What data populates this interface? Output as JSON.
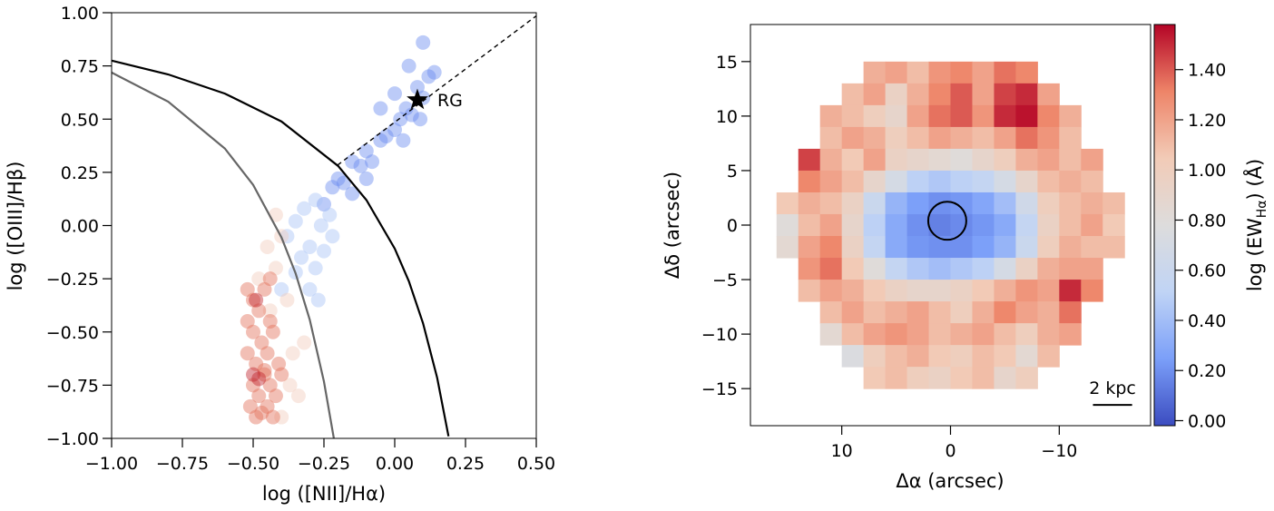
{
  "chart_data": [
    {
      "type": "scatter",
      "xlabel": "log ([NII]/Hα)",
      "ylabel": "log ([OIII]/Hβ)",
      "xlim": [
        -1,
        0.5
      ],
      "ylim": [
        -1,
        1
      ],
      "xticks": [
        {
          "value": -1,
          "label": "−1.00"
        },
        {
          "value": -0.75,
          "label": "−0.75"
        },
        {
          "value": -0.5,
          "label": "−0.50"
        },
        {
          "value": -0.25,
          "label": "−0.25"
        },
        {
          "value": 0,
          "label": "0.00"
        },
        {
          "value": 0.25,
          "label": "0.25"
        },
        {
          "value": 0.5,
          "label": "0.50"
        }
      ],
      "yticks": [
        {
          "value": -1,
          "label": "−1.00"
        },
        {
          "value": -0.75,
          "label": "−0.75"
        },
        {
          "value": -0.5,
          "label": "−0.50"
        },
        {
          "value": -0.25,
          "label": "−0.25"
        },
        {
          "value": 0,
          "label": "0.00"
        },
        {
          "value": 0.25,
          "label": "0.25"
        },
        {
          "value": 0.5,
          "label": "0.50"
        },
        {
          "value": 0.75,
          "label": "0.75"
        },
        {
          "value": 1,
          "label": "1.00"
        }
      ],
      "series": [
        {
          "color": "#6a8cef",
          "x": [
            -0.25,
            -0.22,
            -0.2,
            -0.18,
            -0.15,
            -0.12,
            -0.1,
            -0.08,
            -0.05,
            -0.03,
            0,
            0.02,
            0.04,
            0.06,
            0.08,
            0.1,
            0.12,
            0.14,
            -0.05,
            0,
            0.05,
            0.1,
            -0.15,
            -0.1,
            0.03,
            0.09
          ],
          "values": [
            0.1,
            0.18,
            0.22,
            0.2,
            0.3,
            0.28,
            0.35,
            0.3,
            0.4,
            0.42,
            0.45,
            0.5,
            0.55,
            0.52,
            0.65,
            0.6,
            0.7,
            0.72,
            0.55,
            0.62,
            0.75,
            0.86,
            0.15,
            0.22,
            0.4,
            0.5
          ]
        },
        {
          "color": "#a9c4f6",
          "x": [
            -0.38,
            -0.35,
            -0.33,
            -0.3,
            -0.28,
            -0.26,
            -0.25,
            -0.23,
            -0.3,
            -0.35,
            -0.27,
            -0.32,
            -0.22,
            -0.4,
            -0.28
          ],
          "values": [
            -0.05,
            0.02,
            -0.15,
            -0.1,
            -0.2,
            0,
            -0.12,
            0.05,
            -0.3,
            -0.22,
            -0.35,
            0.08,
            -0.05,
            -0.3,
            0.12
          ]
        },
        {
          "color": "#f1cdbc",
          "x": [
            -0.45,
            -0.42,
            -0.4,
            -0.38,
            -0.44,
            -0.36,
            -0.48,
            -0.34,
            -0.4,
            -0.37,
            -0.32,
            -0.42
          ],
          "values": [
            -0.1,
            -0.2,
            -0.05,
            -0.35,
            -0.4,
            -0.6,
            -0.25,
            -0.8,
            -0.9,
            -0.75,
            -0.55,
            0.05
          ]
        },
        {
          "color": "#e3725a",
          "x": [
            -0.52,
            -0.5,
            -0.48,
            -0.46,
            -0.44,
            -0.5,
            -0.47,
            -0.45,
            -0.43,
            -0.41,
            -0.52,
            -0.49,
            -0.46,
            -0.44,
            -0.5,
            -0.48,
            -0.42,
            -0.4,
            -0.51,
            -0.47,
            -0.45,
            -0.43,
            -0.49,
            -0.46,
            -0.52,
            -0.44
          ],
          "values": [
            -0.3,
            -0.35,
            -0.4,
            -0.3,
            -0.45,
            -0.5,
            -0.55,
            -0.6,
            -0.5,
            -0.65,
            -0.6,
            -0.65,
            -0.7,
            -0.75,
            -0.75,
            -0.8,
            -0.8,
            -0.7,
            -0.85,
            -0.88,
            -0.85,
            -0.9,
            -0.9,
            -0.68,
            -0.45,
            -0.25
          ]
        },
        {
          "color": "#c0262f",
          "x": [
            -0.5,
            -0.48,
            -0.49
          ],
          "values": [
            -0.7,
            -0.72,
            -0.35
          ]
        }
      ],
      "lines": [
        {
          "color": "#666666",
          "style": "solid",
          "x": [
            -1,
            -0.8,
            -0.6,
            -0.5,
            -0.4,
            -0.35,
            -0.3,
            -0.25,
            -0.215
          ],
          "values": [
            0.719,
            0.582,
            0.362,
            0.191,
            -0.056,
            -0.225,
            -0.443,
            -0.733,
            -1
          ]
        },
        {
          "color": "#000000",
          "style": "solid",
          "x": [
            -1,
            -0.8,
            -0.6,
            -0.4,
            -0.2,
            -0.1,
            0,
            0.05,
            0.1,
            0.15,
            0.19
          ],
          "values": [
            0.775,
            0.71,
            0.62,
            0.489,
            0.28,
            0.12,
            -0.108,
            -0.262,
            -0.459,
            -0.716,
            -0.99
          ]
        },
        {
          "color": "#000000",
          "style": "dashed",
          "x": [
            -0.202,
            0.5
          ],
          "values": [
            0.284,
            0.985
          ]
        }
      ],
      "marker": {
        "x": 0.08,
        "y": 0.59,
        "label": "RG"
      }
    },
    {
      "type": "heatmap",
      "xlabel": "Δα (arcsec)",
      "ylabel": "Δδ (arcsec)",
      "xlim": [
        18.4,
        -18.4
      ],
      "ylim": [
        -18.4,
        18.4
      ],
      "xticks": [
        10,
        0,
        {
          "value": -10,
          "label": "−10"
        }
      ],
      "yticks": [
        15,
        10,
        5,
        0,
        {
          "value": -5,
          "label": "−5"
        },
        {
          "value": -10,
          "label": "−10"
        },
        {
          "value": -15,
          "label": "−15"
        }
      ],
      "x": [
        15,
        13,
        11,
        9,
        7,
        5,
        3,
        1,
        -1,
        -3,
        -5,
        -7,
        -9,
        -11,
        -13,
        -15
      ],
      "y": [
        14,
        12,
        10,
        8,
        6,
        4,
        2,
        0,
        -2,
        -4,
        -6,
        -8,
        -10,
        -12,
        -14
      ],
      "z": [
        [
          null,
          null,
          null,
          null,
          1.15,
          1.2,
          1.1,
          1.25,
          1.3,
          1.2,
          1.35,
          1.3,
          null,
          null,
          null,
          null
        ],
        [
          null,
          null,
          null,
          1.1,
          1.2,
          0.95,
          1.15,
          1.3,
          1.4,
          1.2,
          1.45,
          1.5,
          1.2,
          null,
          null,
          null
        ],
        [
          null,
          null,
          1.15,
          1.1,
          1.0,
          0.9,
          1.2,
          1.35,
          1.4,
          1.25,
          1.5,
          1.55,
          1.3,
          1.15,
          null,
          null
        ],
        [
          null,
          null,
          1.1,
          1.2,
          1.15,
          1.0,
          1.1,
          1.2,
          1.15,
          1.1,
          1.2,
          1.35,
          1.25,
          1.1,
          null,
          null
        ],
        [
          null,
          1.45,
          1.15,
          1.05,
          1.2,
          0.95,
          0.9,
          0.85,
          0.8,
          0.9,
          1.0,
          1.15,
          1.2,
          1.1,
          1.2,
          null
        ],
        [
          null,
          1.3,
          1.2,
          1.1,
          0.9,
          0.7,
          0.5,
          0.45,
          0.5,
          0.55,
          0.7,
          0.9,
          1.1,
          1.15,
          1.1,
          null
        ],
        [
          1.05,
          1.15,
          1.1,
          0.95,
          0.6,
          0.35,
          0.25,
          0.2,
          0.22,
          0.28,
          0.4,
          0.65,
          1.0,
          1.1,
          1.15,
          1.1
        ],
        [
          0.8,
          1.1,
          1.2,
          0.9,
          0.5,
          0.3,
          0.2,
          0.15,
          0.18,
          0.22,
          0.3,
          0.55,
          0.95,
          1.1,
          1.2,
          1.05
        ],
        [
          0.85,
          1.2,
          1.3,
          0.95,
          0.55,
          0.3,
          0.22,
          0.2,
          0.2,
          0.25,
          0.35,
          0.6,
          1.0,
          1.15,
          1.1,
          1.1
        ],
        [
          null,
          1.25,
          1.35,
          1.05,
          0.8,
          0.55,
          0.45,
          0.4,
          0.45,
          0.5,
          0.7,
          0.95,
          1.15,
          1.2,
          1.2,
          null
        ],
        [
          null,
          1.1,
          1.2,
          1.15,
          1.05,
          0.95,
          0.9,
          0.9,
          0.95,
          1.05,
          1.15,
          1.25,
          1.2,
          1.5,
          1.3,
          null
        ],
        [
          null,
          null,
          1.1,
          1.2,
          1.1,
          1.15,
          1.2,
          1.1,
          1.0,
          1.15,
          1.3,
          1.2,
          1.15,
          1.35,
          null,
          null
        ],
        [
          null,
          null,
          0.85,
          1.1,
          1.2,
          1.25,
          1.2,
          1.1,
          1.15,
          1.2,
          1.1,
          1.0,
          1.15,
          1.2,
          null,
          null
        ],
        [
          null,
          null,
          null,
          0.75,
          1.0,
          1.1,
          1.15,
          1.05,
          1.0,
          1.1,
          1.05,
          0.85,
          1.1,
          null,
          null,
          null
        ],
        [
          null,
          null,
          null,
          null,
          1.05,
          1.1,
          1.0,
          0.95,
          1.05,
          1.1,
          0.9,
          1.0,
          null,
          null,
          null,
          null
        ]
      ],
      "zlim": [
        -0.02,
        1.58
      ],
      "colormap": [
        "#3b4cc0",
        "#7b9ff9",
        "#c0d4f5",
        "#dddcdc",
        "#f2cbb7",
        "#ee8468",
        "#b40426"
      ],
      "zticks": [
        {
          "value": 0,
          "label": "0.00"
        },
        {
          "value": 0.2,
          "label": "0.20"
        },
        {
          "value": 0.4,
          "label": "0.40"
        },
        {
          "value": 0.6,
          "label": "0.60"
        },
        {
          "value": 0.8,
          "label": "0.80"
        },
        {
          "value": 1,
          "label": "1.00"
        },
        {
          "value": 1.2,
          "label": "1.20"
        },
        {
          "value": 1.4,
          "label": "1.40"
        }
      ],
      "zlabel": {
        "text": "log (EW",
        "sub": "Hα",
        "tail": ") (Å)"
      },
      "circle": {
        "x": 0.3,
        "y": 0.4,
        "r": 1.75
      },
      "scalebar": {
        "label": "2 kpc",
        "x": [
          -13.1,
          -16.7
        ],
        "y": -16.5
      }
    }
  ]
}
